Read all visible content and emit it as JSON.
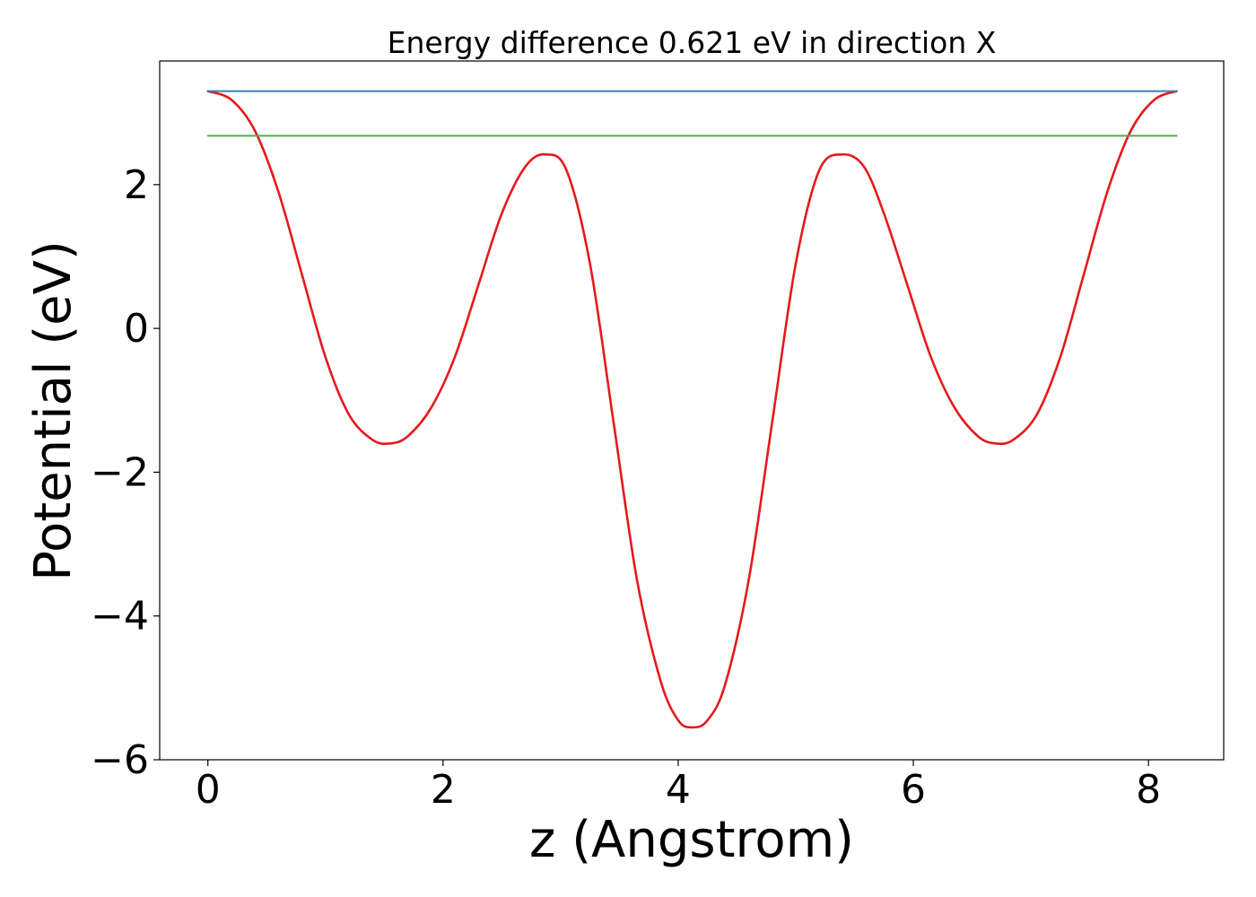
{
  "chart_data": {
    "type": "line",
    "title": "Energy difference 0.621 eV in direction X",
    "xlabel": "z (Angstrom)",
    "ylabel": "Potential (eV)",
    "xlim": [
      -0.41,
      8.64
    ],
    "ylim": [
      -6.0,
      3.72
    ],
    "xticks": [
      0,
      2,
      4,
      6,
      8
    ],
    "xtick_labels": [
      "0",
      "2",
      "4",
      "6",
      "8"
    ],
    "yticks": [
      -6,
      -4,
      -2,
      0,
      2
    ],
    "ytick_labels": [
      "−6",
      "−4",
      "−2",
      "0",
      "2"
    ],
    "grid": false,
    "legend": "none",
    "series": [
      {
        "color": "#e41a1c",
        "x": [
          0.0,
          0.2,
          0.4,
          0.6,
          0.8,
          1.0,
          1.2,
          1.4,
          1.55,
          1.7,
          1.9,
          2.1,
          2.3,
          2.5,
          2.7,
          2.87,
          3.05,
          3.25,
          3.45,
          3.65,
          3.85,
          4.0,
          4.12,
          4.25,
          4.4,
          4.6,
          4.8,
          5.0,
          5.2,
          5.4,
          5.58,
          5.75,
          5.95,
          6.15,
          6.35,
          6.55,
          6.7,
          6.85,
          7.05,
          7.25,
          7.45,
          7.65,
          7.85,
          8.05,
          8.24
        ],
        "y": [
          3.3,
          3.18,
          2.75,
          1.9,
          0.75,
          -0.4,
          -1.2,
          -1.55,
          -1.6,
          -1.5,
          -1.1,
          -0.4,
          0.6,
          1.6,
          2.25,
          2.42,
          2.2,
          0.9,
          -1.3,
          -3.5,
          -4.9,
          -5.45,
          -5.55,
          -5.45,
          -4.95,
          -3.5,
          -1.3,
          0.9,
          2.2,
          2.42,
          2.25,
          1.6,
          0.6,
          -0.4,
          -1.1,
          -1.5,
          -1.6,
          -1.55,
          -1.2,
          -0.4,
          0.75,
          1.9,
          2.75,
          3.18,
          3.3
        ]
      },
      {
        "color": "#377eb8",
        "x": [
          0.0,
          8.24
        ],
        "y": [
          3.3,
          3.3
        ]
      },
      {
        "color": "#4daf4a",
        "x": [
          0.0,
          8.24
        ],
        "y": [
          2.68,
          2.68
        ]
      }
    ]
  }
}
